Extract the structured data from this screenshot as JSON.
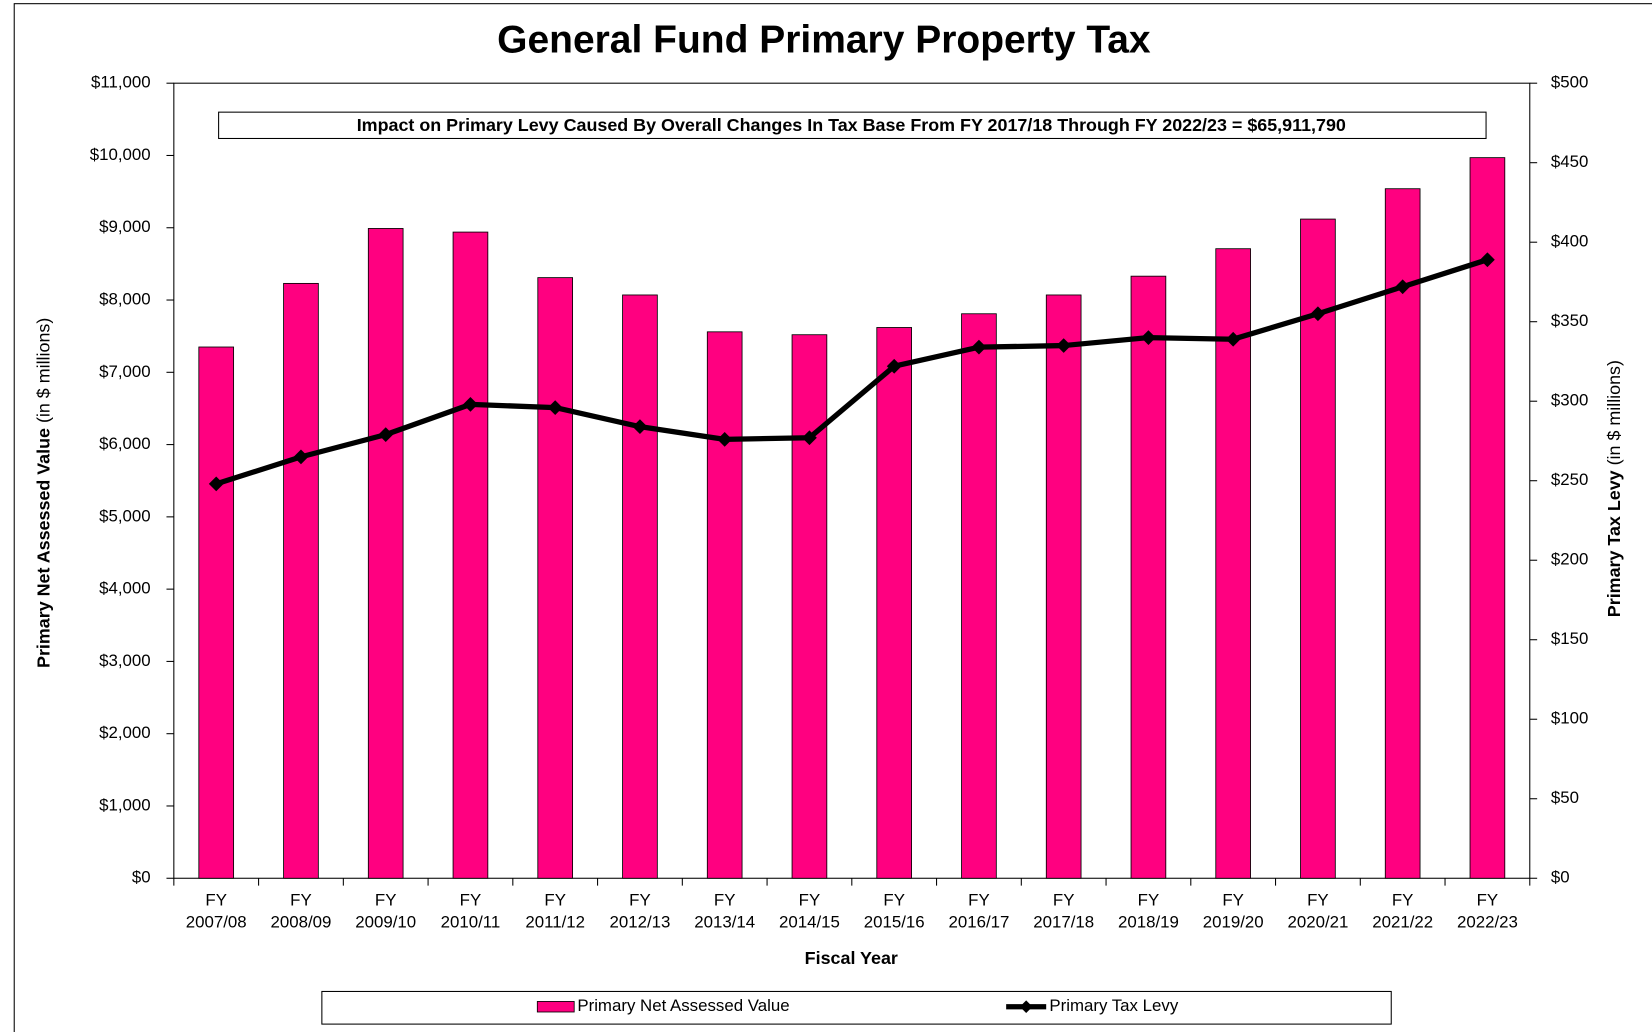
{
  "chart_data": {
    "type": "bar_line",
    "title": "General Fund Primary Property Tax",
    "annotation": "Impact on Primary Levy Caused By Overall Changes In Tax Base From FY 2017/18 Through FY 2022/23 = $65,911,790",
    "x_label": "Fiscal Year",
    "y_label": "Primary Net Assessed Value",
    "y_label_unit": "(in $ millions)",
    "y2_label": "Primary Tax Levy",
    "y2_label_unit": "(in $ millions)",
    "categories": [
      "FY\n2007/08",
      "FY\n2008/09",
      "FY\n2009/10",
      "FY\n2010/11",
      "FY\n2011/12",
      "FY\n2012/13",
      "FY\n2013/14",
      "FY\n2014/15",
      "FY\n2015/16",
      "FY\n2016/17",
      "FY\n2017/18",
      "FY\n2018/19",
      "FY\n2019/20",
      "FY\n2020/21",
      "FY\n2021/22",
      "FY\n2022/23"
    ],
    "series": [
      {
        "name": "Primary Net Assessed Value",
        "type": "bar",
        "color": "#ff0080",
        "values": [
          7350,
          8230,
          8990,
          8940,
          8310,
          8070,
          7560,
          7520,
          7620,
          7810,
          8070,
          8330,
          8710,
          9120,
          9540,
          9970
        ]
      },
      {
        "name": "Primary Tax Levy",
        "type": "line",
        "axis": "y2",
        "color": "#000000",
        "values": [
          248,
          265,
          279,
          298,
          296,
          284,
          276,
          277,
          322,
          334,
          335,
          340,
          339,
          355,
          372,
          389
        ]
      }
    ],
    "ylim": [
      0,
      11000
    ],
    "yticks": [
      {
        "value": 0,
        "label": "$0"
      },
      {
        "value": 1000,
        "label": "$1,000"
      },
      {
        "value": 2000,
        "label": "$2,000"
      },
      {
        "value": 3000,
        "label": "$3,000"
      },
      {
        "value": 4000,
        "label": "$4,000"
      },
      {
        "value": 5000,
        "label": "$5,000"
      },
      {
        "value": 6000,
        "label": "$6,000"
      },
      {
        "value": 7000,
        "label": "$7,000"
      },
      {
        "value": 8000,
        "label": "$8,000"
      },
      {
        "value": 9000,
        "label": "$9,000"
      },
      {
        "value": 10000,
        "label": "$10,000"
      },
      {
        "value": 11000,
        "label": "$11,000"
      }
    ],
    "y2lim": [
      0,
      500
    ],
    "y2ticks": [
      {
        "value": 0,
        "label": "$0"
      },
      {
        "value": 50,
        "label": "$50"
      },
      {
        "value": 100,
        "label": "$100"
      },
      {
        "value": 150,
        "label": "$150"
      },
      {
        "value": 200,
        "label": "$200"
      },
      {
        "value": 250,
        "label": "$250"
      },
      {
        "value": 300,
        "label": "$300"
      },
      {
        "value": 350,
        "label": "$350"
      },
      {
        "value": 400,
        "label": "$400"
      },
      {
        "value": 450,
        "label": "$450"
      },
      {
        "value": 500,
        "label": "$500"
      }
    ],
    "grid": false,
    "legend": "bottom"
  }
}
